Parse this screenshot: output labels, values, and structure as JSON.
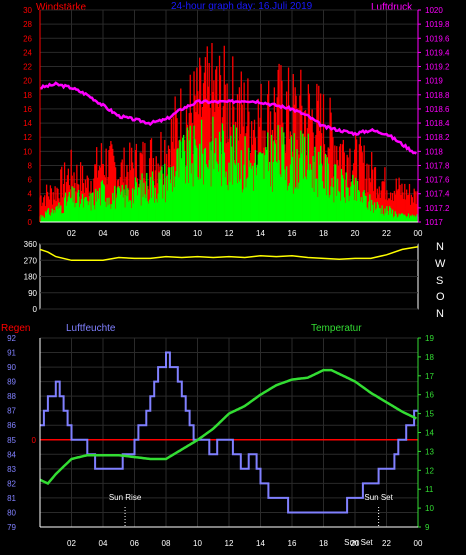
{
  "top_panel": {
    "left_title": "Windstärke",
    "center_title": "24-hour graph day: 16.Juli 2019",
    "right_title": "Luftdruck"
  },
  "middle_panel": {
    "direction_labels": [
      "N",
      "W",
      "S",
      "O",
      "N"
    ]
  },
  "bottom_panel": {
    "left_title": "Regen",
    "center_title": "Luftfeuchte",
    "right_title": "Temperatur",
    "sunrise_label": "Sun Rise",
    "sunset_label": "Sun Set",
    "overlap_label": "Sun Set"
  },
  "colors": {
    "wind_gust": "#ff0000",
    "wind_speed": "#00ff00",
    "pressure": "#ff00ff",
    "wind_direction": "#ffff00",
    "rain": "#ff0000",
    "humidity": "#8080ff",
    "temperature": "#33dd33",
    "axis": "#ffffff",
    "grid": "#2a2a2a"
  },
  "chart_data": [
    {
      "type": "bar",
      "name": "wind-and-pressure",
      "x_ticks": [
        "02",
        "04",
        "06",
        "08",
        "10",
        "12",
        "14",
        "16",
        "18",
        "20",
        "22",
        "00"
      ],
      "x_range_hours": [
        0,
        24
      ],
      "left_axis": {
        "label": "Windstärke",
        "ylim": [
          0,
          30
        ],
        "ticks": [
          "0",
          "2",
          "4",
          "6",
          "8",
          "10",
          "12",
          "14",
          "16",
          "18",
          "20",
          "22",
          "24",
          "26",
          "28",
          "30"
        ]
      },
      "right_axis": {
        "label": "Luftdruck",
        "ylim": [
          1017,
          1020
        ],
        "ticks": [
          "1017",
          "1017.2",
          "1017.4",
          "1017.6",
          "1017.8",
          "1018",
          "1018.2",
          "1018.4",
          "1018.6",
          "1018.8",
          "1019",
          "1019.2",
          "1019.4",
          "1019.6",
          "1019.8",
          "1020"
        ]
      },
      "series": [
        {
          "name": "Windstärke",
          "hours": [
            0,
            1,
            2,
            3,
            4,
            5,
            6,
            7,
            8,
            9,
            10,
            11,
            12,
            13,
            14,
            15,
            16,
            17,
            18,
            19,
            20,
            21,
            22,
            23,
            24
          ],
          "gust": [
            4,
            5,
            8,
            6,
            10,
            8,
            9,
            10,
            12,
            16,
            18,
            20,
            19,
            17,
            16,
            18,
            17,
            17,
            15,
            12,
            10,
            8,
            6,
            5,
            4
          ],
          "speed": [
            1,
            2,
            4,
            3,
            5,
            4,
            5,
            6,
            7,
            10,
            11,
            12,
            11,
            10,
            9,
            11,
            10,
            10,
            8,
            6,
            5,
            3,
            2,
            1,
            1
          ]
        },
        {
          "name": "Luftdruck",
          "hours": [
            0,
            1,
            2,
            3,
            4,
            5,
            6,
            7,
            8,
            9,
            10,
            11,
            12,
            13,
            14,
            15,
            16,
            17,
            18,
            19,
            20,
            21,
            22,
            23,
            24
          ],
          "values": [
            1018.9,
            1018.95,
            1018.9,
            1018.8,
            1018.65,
            1018.5,
            1018.45,
            1018.4,
            1018.45,
            1018.6,
            1018.7,
            1018.7,
            1018.7,
            1018.72,
            1018.7,
            1018.65,
            1018.6,
            1018.5,
            1018.35,
            1018.3,
            1018.25,
            1018.3,
            1018.25,
            1018.1,
            1017.95
          ]
        }
      ]
    },
    {
      "type": "line",
      "name": "wind-direction",
      "y_ticks": [
        "0",
        "90",
        "180",
        "270",
        "360"
      ],
      "ylim": [
        0,
        360
      ],
      "series": [
        {
          "name": "Windrichtung",
          "hours": [
            0,
            0.5,
            1,
            2,
            3,
            4,
            5,
            6,
            7,
            8,
            9,
            10,
            11,
            12,
            13,
            14,
            15,
            16,
            17,
            18,
            19,
            20,
            21,
            22,
            23,
            24
          ],
          "values": [
            330,
            315,
            290,
            270,
            270,
            270,
            285,
            280,
            280,
            290,
            285,
            290,
            285,
            290,
            285,
            295,
            290,
            295,
            285,
            280,
            275,
            280,
            280,
            300,
            330,
            345
          ]
        }
      ]
    },
    {
      "type": "line",
      "name": "humidity-temperature",
      "left_axis": {
        "label": "Luftfeuchte",
        "ylim": [
          79,
          92
        ],
        "ticks": [
          "79",
          "80",
          "81",
          "82",
          "83",
          "84",
          "85",
          "86",
          "87",
          "88",
          "89",
          "90",
          "91",
          "92"
        ]
      },
      "right_axis": {
        "label": "Temperatur",
        "ylim": [
          9,
          19
        ],
        "ticks": [
          "9",
          "10",
          "11",
          "12",
          "13",
          "14",
          "15",
          "16",
          "17",
          "18",
          "19"
        ]
      },
      "series": [
        {
          "name": "Luftfeuchte",
          "hours": [
            0,
            0.5,
            1,
            1.5,
            2,
            3,
            4,
            5,
            5.5,
            6,
            6.5,
            7,
            7.5,
            8,
            8.5,
            9,
            9.5,
            10,
            10.5,
            11,
            11.5,
            12,
            12.5,
            13,
            13.5,
            14,
            15,
            16,
            17,
            18,
            19,
            20,
            21,
            22,
            22.5,
            23,
            23.5,
            24
          ],
          "values": [
            86,
            88,
            89,
            87,
            85,
            84,
            83,
            83,
            84,
            85,
            86,
            88,
            90,
            91,
            90,
            88,
            86,
            85,
            84.5,
            84,
            84.5,
            85,
            84,
            83,
            84,
            82,
            81,
            80,
            80,
            80,
            80,
            81,
            82,
            83,
            84,
            85,
            86,
            87
          ]
        },
        {
          "name": "Temperatur",
          "hours": [
            0,
            0.5,
            1,
            2,
            3,
            4,
            5,
            6,
            7,
            8,
            9,
            10,
            11,
            12,
            13,
            14,
            15,
            16,
            17,
            18,
            18.5,
            19,
            20,
            21,
            22,
            23,
            24
          ],
          "values": [
            11.5,
            11.3,
            11.8,
            12.6,
            12.8,
            12.8,
            12.8,
            12.7,
            12.6,
            12.6,
            13.1,
            13.6,
            14.2,
            15,
            15.4,
            16,
            16.5,
            16.8,
            16.9,
            17.3,
            17.3,
            17.1,
            16.7,
            16.1,
            15.6,
            15.1,
            14.7
          ]
        }
      ],
      "rain_line_value": 0,
      "sunrise_hour": 5.4,
      "sunset_hour": 21.5
    }
  ]
}
